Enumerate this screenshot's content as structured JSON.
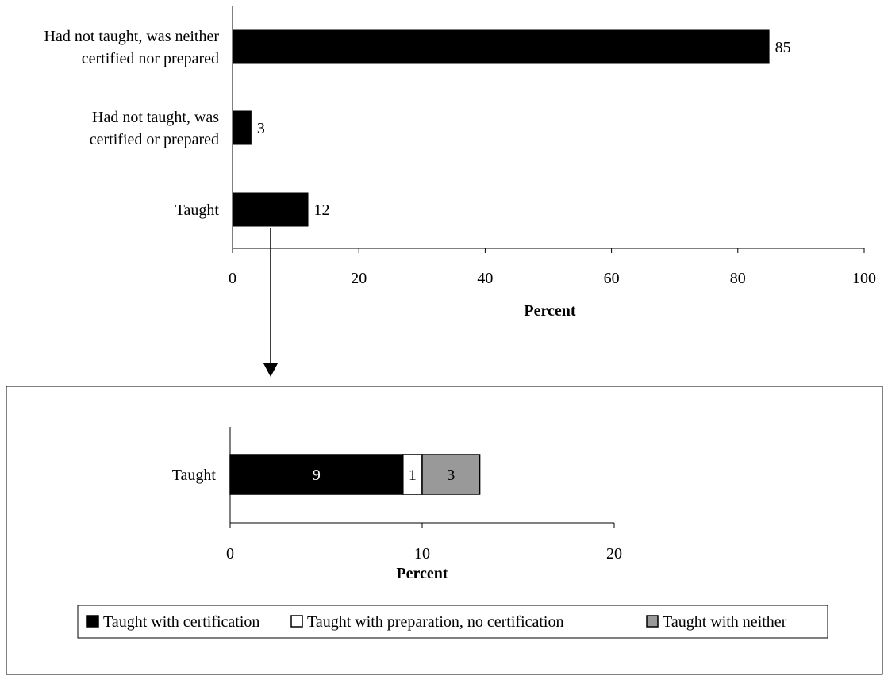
{
  "chart_data": [
    {
      "type": "bar",
      "orientation": "horizontal",
      "categories": [
        "Had not taught, was neither certified nor prepared",
        "Had not taught, was certified or prepared",
        "Taught"
      ],
      "category_lines": [
        [
          "Had not taught, was neither",
          "certified nor prepared"
        ],
        [
          "Had not taught, was",
          "certified or prepared"
        ],
        [
          "Taught"
        ]
      ],
      "values": [
        85,
        3,
        12
      ],
      "value_labels": [
        "85",
        "3",
        "12"
      ],
      "xlabel": "Percent",
      "xlim": [
        0,
        100
      ],
      "xticks": [
        0,
        20,
        40,
        60,
        80,
        100
      ],
      "xtick_labels": [
        "0",
        "20",
        "40",
        "60",
        "80",
        "100"
      ],
      "bar_color": "#000000",
      "grid": false
    },
    {
      "type": "bar",
      "orientation": "horizontal",
      "stacked": true,
      "categories": [
        "Taught"
      ],
      "series": [
        {
          "name": "Taught with certification",
          "values": [
            9
          ],
          "value_label": "9",
          "color": "#000000",
          "label_color": "#ffffff"
        },
        {
          "name": "Taught with preparation, no certification",
          "values": [
            1
          ],
          "value_label": "1",
          "color": "#ffffff",
          "label_color": "#000000"
        },
        {
          "name": "Taught with neither",
          "values": [
            3
          ],
          "value_label": "3",
          "color": "#999999",
          "label_color": "#000000"
        }
      ],
      "xlabel": "Percent",
      "xlim": [
        0,
        20
      ],
      "xticks": [
        0,
        10,
        20
      ],
      "xtick_labels": [
        "0",
        "10",
        "20"
      ],
      "legend_position": "bottom",
      "grid": false
    }
  ]
}
